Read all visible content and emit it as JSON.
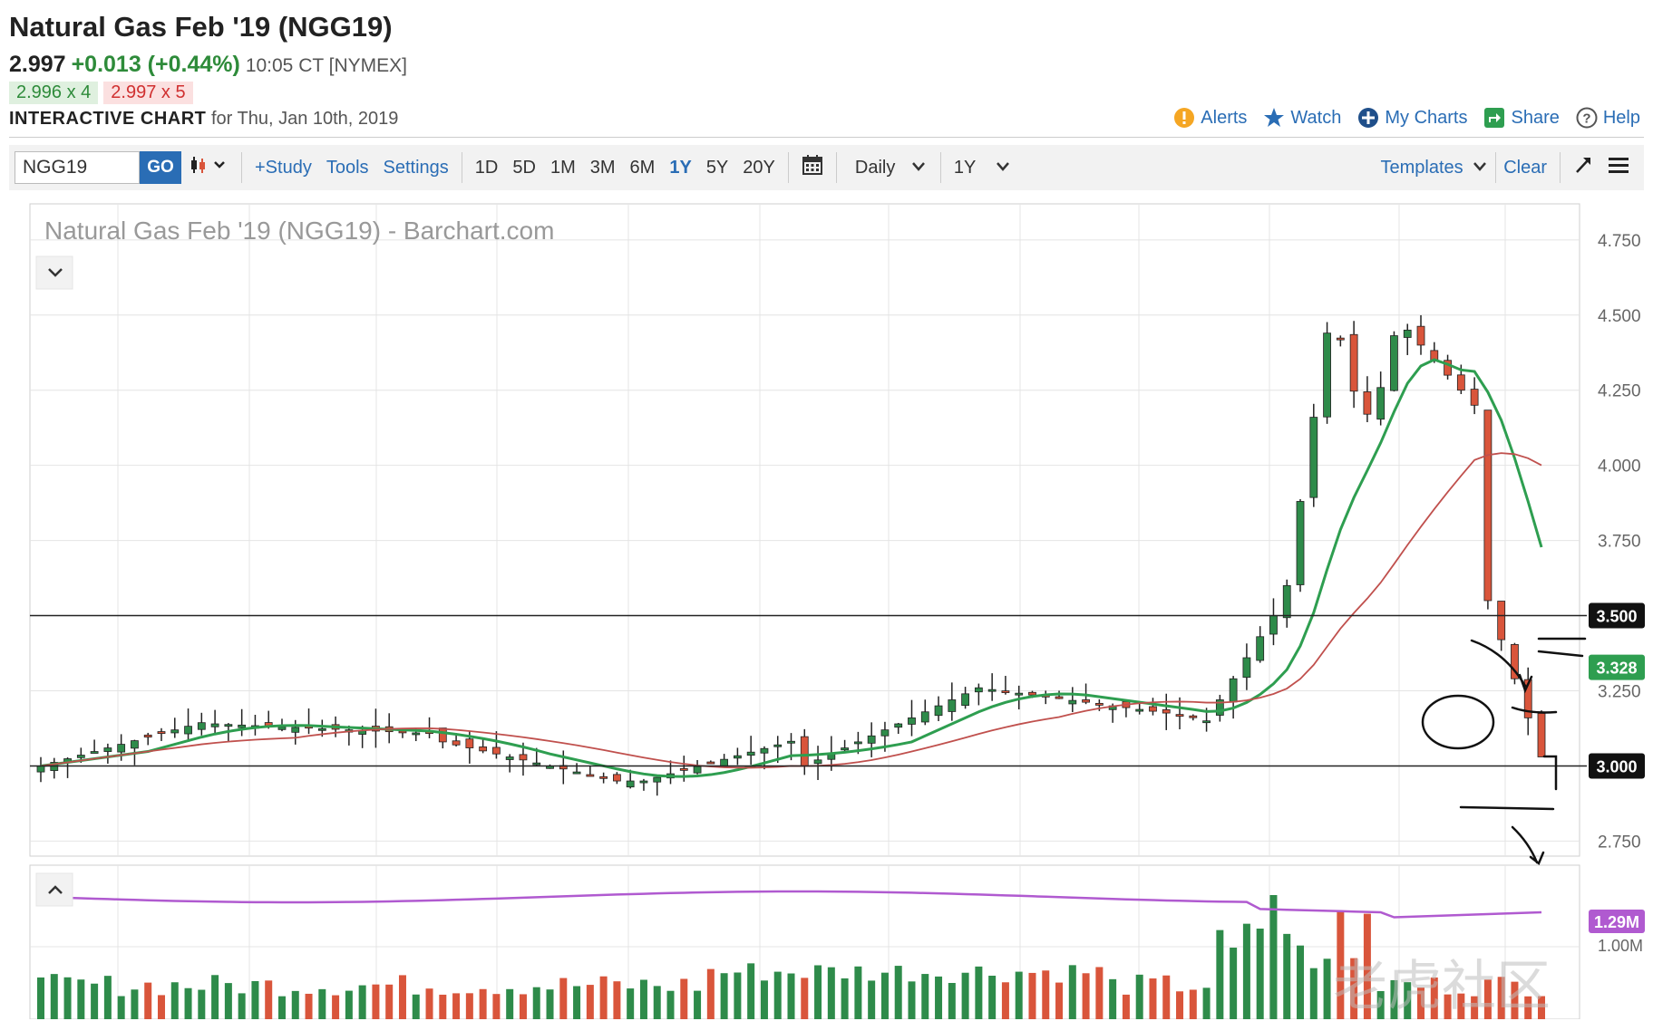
{
  "header": {
    "title": "Natural Gas Feb '19 (NGG19)",
    "price": "2.997",
    "change": "+0.013 (+0.44%)",
    "time": "10:05 CT [NYMEX]",
    "bid": "2.996 x 4",
    "ask": "2.997 x 5",
    "chart_label": "INTERACTIVE CHART",
    "chart_date": "for Thu, Jan 10th, 2019"
  },
  "links": {
    "alerts": "Alerts",
    "watch": "Watch",
    "my_charts": "My Charts",
    "share": "Share",
    "help": "Help"
  },
  "toolbar": {
    "symbol_value": "NGG19",
    "go": "GO",
    "study": "+Study",
    "tools": "Tools",
    "settings": "Settings",
    "ranges": [
      "1D",
      "5D",
      "1M",
      "3M",
      "6M",
      "1Y",
      "5Y",
      "20Y"
    ],
    "active_range": "1Y",
    "interval": "Daily",
    "period": "1Y",
    "templates": "Templates",
    "clear": "Clear"
  },
  "colors": {
    "up": "#2e8b4a",
    "down": "#d9553b",
    "ma_fast": "#2e9e50",
    "ma_slow": "#c0504d",
    "volume_avg": "#b05ad0",
    "link": "#2a6db5"
  },
  "watermark": "老虎社区",
  "chart_data": {
    "type": "candlestick",
    "title": "Natural Gas Feb '19 (NGG19) - Barchart.com",
    "price_axis": {
      "ticks": [
        2.75,
        3.0,
        3.25,
        3.5,
        3.75,
        4.0,
        4.25,
        4.5,
        4.75
      ],
      "labels": [
        "2.750",
        "3.000",
        "3.250",
        "3.500",
        "3.750",
        "4.000",
        "4.250",
        "4.500",
        "4.750"
      ],
      "range": [
        2.7,
        4.87
      ]
    },
    "horizontal_lines": [
      3.5,
      3.0
    ],
    "price_badges": [
      {
        "label": "3.500",
        "value": 3.5,
        "color": "#111111"
      },
      {
        "label": "3.328",
        "value": 3.328,
        "color": "#2e9e50"
      },
      {
        "label": "3.000",
        "value": 3.0,
        "color": "#111111"
      }
    ],
    "volume_axis": {
      "labels": [
        "1.00M"
      ],
      "badge": "1.29M"
    },
    "grid": true
  }
}
